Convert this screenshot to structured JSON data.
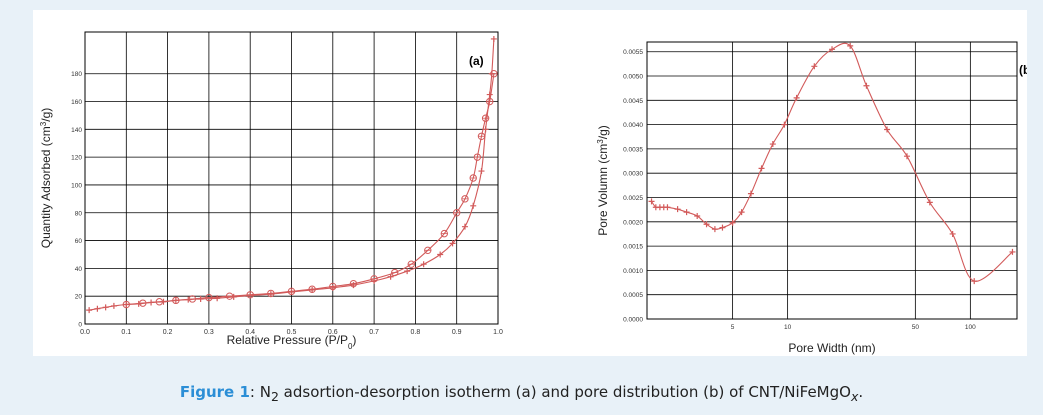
{
  "caption": {
    "label": "Figure 1",
    "text_before_sub": ": N",
    "sub1": "2",
    "text_mid": " adsortion-desorption isotherm (a) and pore distribution (b) of CNT/NiFeMgO",
    "sub2": "x",
    "text_end": "."
  },
  "colors": {
    "curve": "#d25a5a",
    "grid": "#000000",
    "background": "#e8f1f8"
  },
  "chart_data": [
    {
      "type": "line",
      "panel_label": "(a)",
      "xlabel": "Relative Pressure (P/P",
      "xlabel_sub": "0",
      "xlabel_end": ")",
      "ylabel": "Quantity Adsorbed (cm",
      "ylabel_sup": "3",
      "ylabel_end": "/g)",
      "xlim": [
        0.0,
        1.0
      ],
      "ylim": [
        0,
        210
      ],
      "xticks": [
        "0.0",
        "0.1",
        "0.2",
        "0.3",
        "0.4",
        "0.5",
        "0.6",
        "0.7",
        "0.8",
        "0.9",
        "1.0"
      ],
      "yticks": [
        0,
        20,
        40,
        60,
        80,
        100,
        120,
        140,
        160,
        180
      ],
      "grid": true,
      "series": [
        {
          "marker": "plus",
          "x": [
            0.01,
            0.03,
            0.05,
            0.07,
            0.1,
            0.13,
            0.16,
            0.19,
            0.22,
            0.25,
            0.28,
            0.32,
            0.36,
            0.4,
            0.45,
            0.5,
            0.55,
            0.6,
            0.65,
            0.7,
            0.74,
            0.78,
            0.82,
            0.86,
            0.89,
            0.92,
            0.94,
            0.96,
            0.97,
            0.98,
            0.985,
            0.99
          ],
          "y": [
            10,
            11,
            12,
            13,
            14,
            14.5,
            15.5,
            16,
            17,
            17.5,
            18,
            18.5,
            19.5,
            20.5,
            21.5,
            23,
            24.5,
            26,
            28,
            31,
            34,
            38,
            43,
            50,
            58,
            70,
            85,
            110,
            140,
            165,
            180,
            205
          ]
        },
        {
          "marker": "circle",
          "x": [
            0.1,
            0.14,
            0.18,
            0.22,
            0.26,
            0.3,
            0.35,
            0.4,
            0.45,
            0.5,
            0.55,
            0.6,
            0.65,
            0.7,
            0.75,
            0.79,
            0.83,
            0.87,
            0.9,
            0.92,
            0.94,
            0.95,
            0.96,
            0.97,
            0.98,
            0.99
          ],
          "y": [
            14,
            15,
            16,
            17,
            18,
            19,
            20,
            21,
            22,
            23.5,
            25,
            27,
            29,
            32.5,
            37,
            43,
            53,
            65,
            80,
            90,
            105,
            120,
            135,
            148,
            160,
            180
          ]
        }
      ]
    },
    {
      "type": "line",
      "panel_label": "(b)",
      "xlabel": "Pore Width (nm)",
      "ylabel": "Pore Volumn (cm",
      "ylabel_sup": "3",
      "ylabel_end": "/g)",
      "xscale": "log",
      "xlim": [
        1.7,
        180
      ],
      "ylim": [
        0.0,
        0.0057
      ],
      "xticks": [
        "5",
        "10",
        "50",
        "100"
      ],
      "xtick_values": [
        5,
        10,
        50,
        100
      ],
      "yticks": [
        "0.0000",
        "0.0005",
        "0.0010",
        "0.0015",
        "0.0020",
        "0.0025",
        "0.0030",
        "0.0035",
        "0.0040",
        "0.0045",
        "0.0050",
        "0.0055"
      ],
      "grid": true,
      "series": [
        {
          "marker": "plus",
          "x": [
            1.8,
            1.9,
            2.0,
            2.1,
            2.2,
            2.5,
            2.8,
            3.2,
            3.6,
            4.0,
            4.4,
            5.0,
            5.6,
            6.3,
            7.2,
            8.3,
            9.6,
            11.2,
            14,
            17.5,
            22,
            27,
            35,
            45,
            60,
            80,
            105,
            170
          ],
          "y": [
            0.00242,
            0.0023,
            0.0023,
            0.0023,
            0.0023,
            0.00226,
            0.0022,
            0.00212,
            0.00195,
            0.00185,
            0.00188,
            0.00198,
            0.0022,
            0.00258,
            0.0031,
            0.0036,
            0.004,
            0.00455,
            0.0052,
            0.00555,
            0.00562,
            0.0048,
            0.0039,
            0.00335,
            0.0024,
            0.00175,
            0.00078,
            0.00138
          ]
        }
      ]
    }
  ]
}
